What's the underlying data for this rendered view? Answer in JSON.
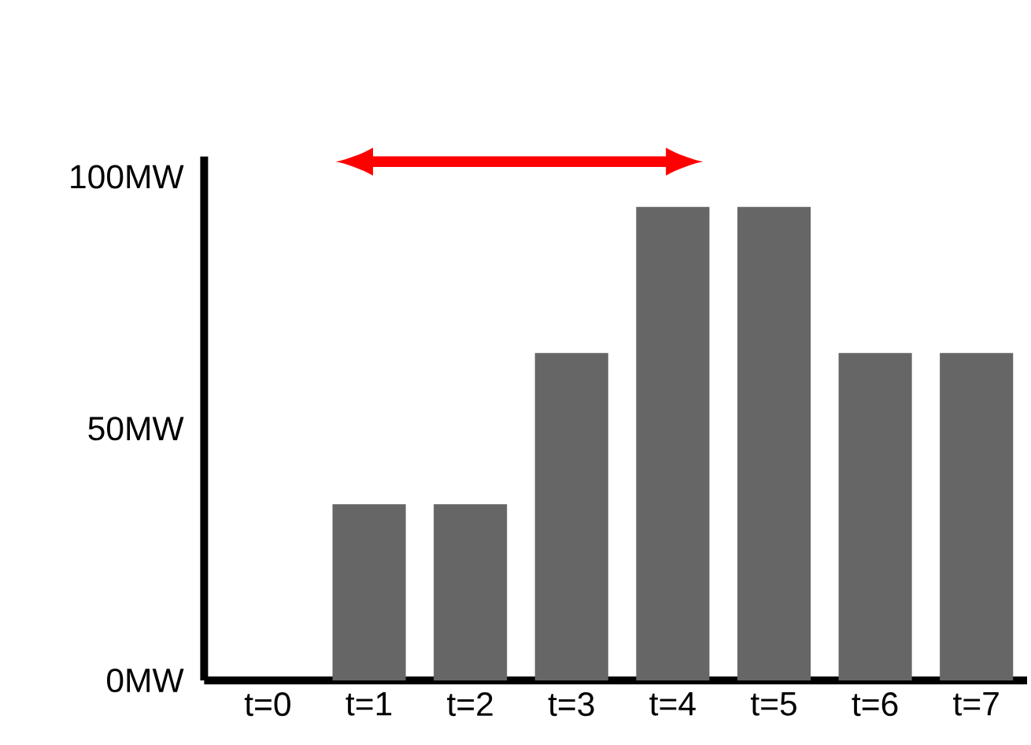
{
  "chart_data": {
    "type": "bar",
    "categories": [
      "t=0",
      "t=1",
      "t=2",
      "t=3",
      "t=4",
      "t=5",
      "t=6",
      "t=7"
    ],
    "values": [
      0,
      35,
      35,
      65,
      94,
      94,
      65,
      65
    ],
    "color": "#666666",
    "ylim": [
      0,
      104
    ],
    "yticks": [
      {
        "value": 0,
        "label": "0MW"
      },
      {
        "value": 50,
        "label": "50MW"
      },
      {
        "value": 100,
        "label": "100MW"
      }
    ]
  }
}
